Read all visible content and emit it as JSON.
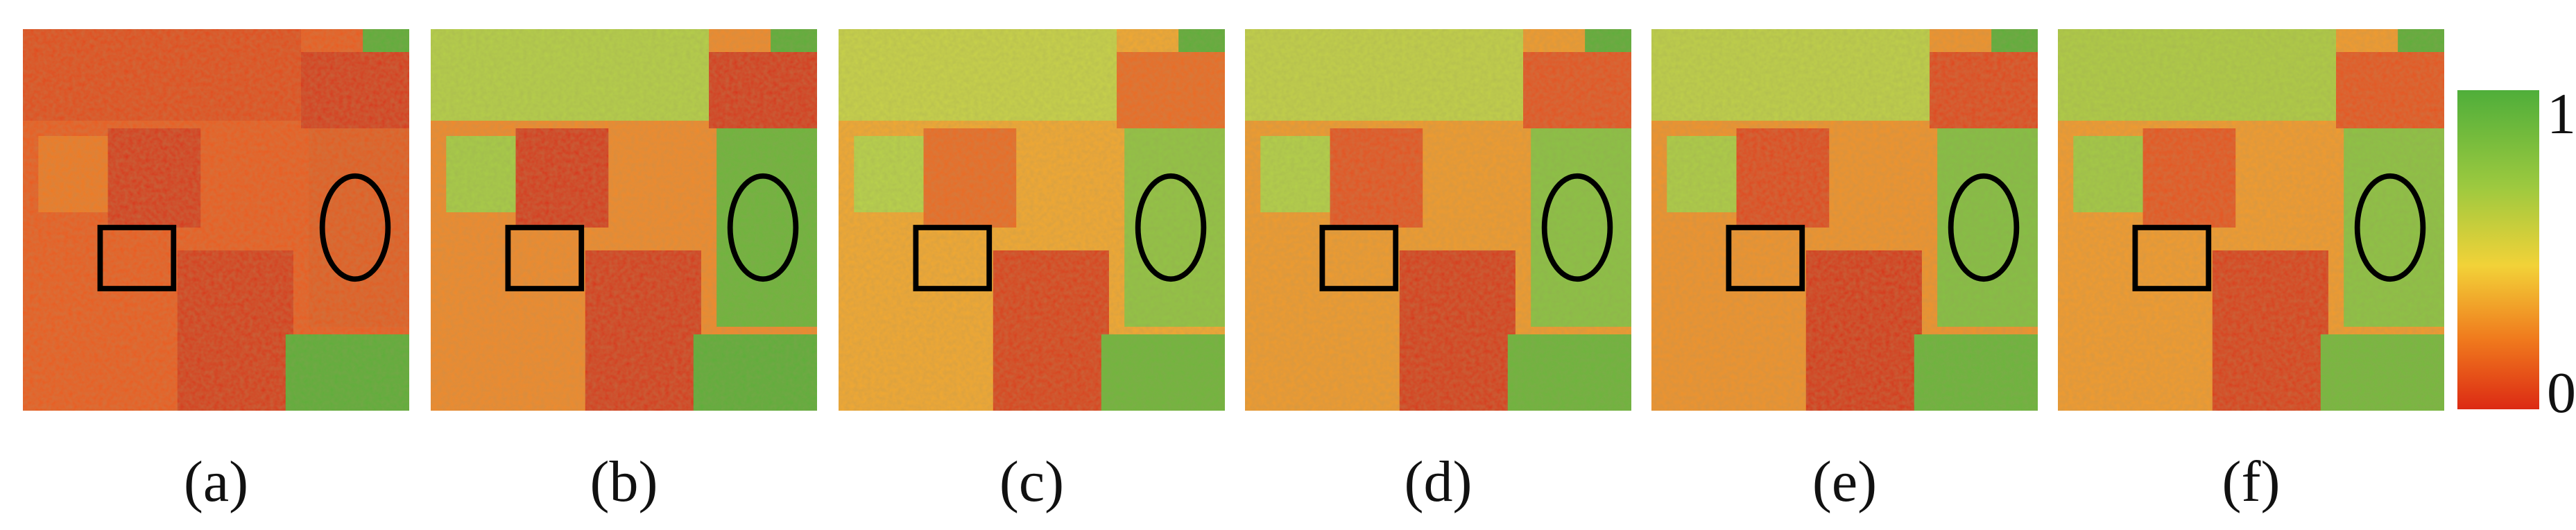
{
  "panels": [
    {
      "label": "(a)"
    },
    {
      "label": "(b)"
    },
    {
      "label": "(c)"
    },
    {
      "label": "(d)"
    },
    {
      "label": "(e)"
    },
    {
      "label": "(f)"
    }
  ],
  "colorbar": {
    "max_label": "1",
    "min_label": "0"
  }
}
